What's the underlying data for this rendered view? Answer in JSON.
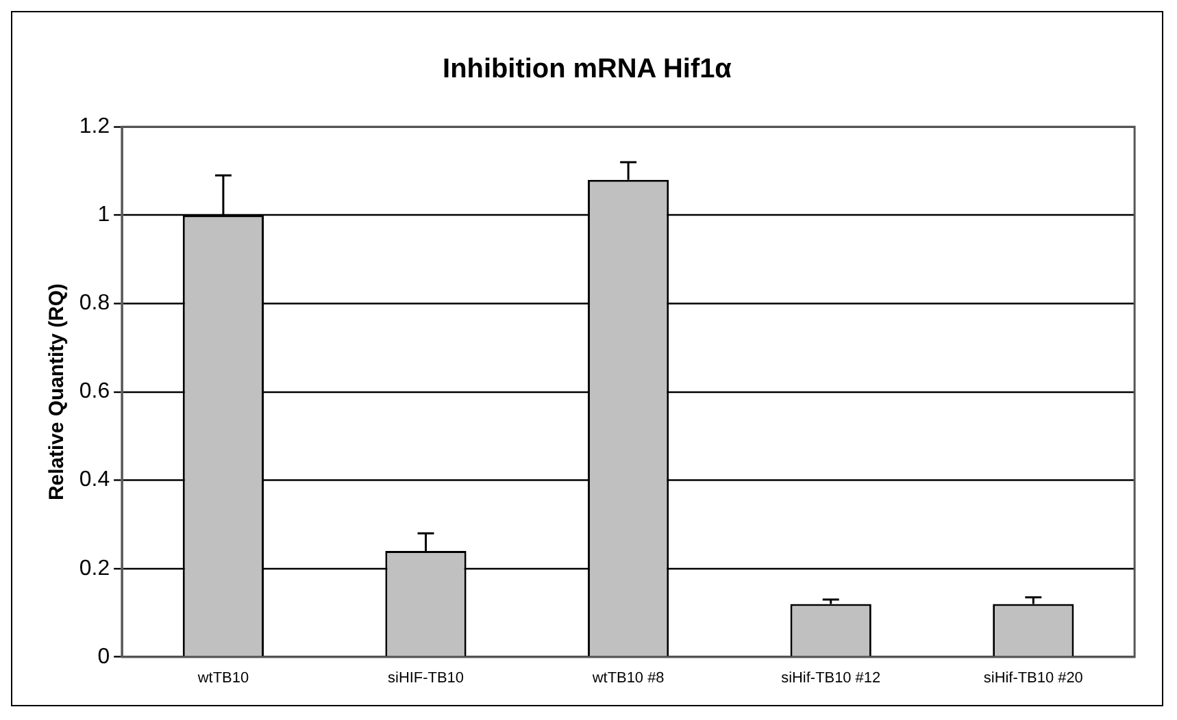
{
  "chart_data": {
    "type": "bar",
    "title": "Inhibition mRNA Hif1α",
    "ylabel": "Relative Quantity (RQ)",
    "categories": [
      "wtTB10",
      "siHIF-TB10",
      "wtTB10 #8",
      "siHif-TB10 #12",
      "siHif-TB10 #20"
    ],
    "values": [
      1.0,
      0.24,
      1.08,
      0.12,
      0.12
    ],
    "errors": [
      [
        1.0,
        1.09
      ],
      [
        0.24,
        0.28
      ],
      [
        1.08,
        1.12
      ],
      [
        0.12,
        0.13
      ],
      [
        0.12,
        0.135
      ]
    ],
    "color": "#c0c0c0",
    "ylim": [
      0,
      1.2
    ],
    "yticks": [
      0,
      0.2,
      0.4,
      0.6,
      0.8,
      1,
      1.2
    ],
    "grid": "y",
    "legend": false
  }
}
